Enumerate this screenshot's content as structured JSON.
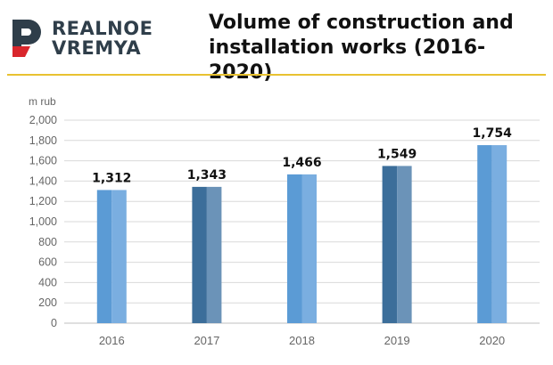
{
  "brand": {
    "line1": "REALNOE",
    "line2": "VREMYA"
  },
  "colors": {
    "accent": "#e8c230",
    "logo_mark": "#2f3e4a",
    "logo_red": "#d9262c",
    "bar_light": "#5b9bd5",
    "bar_dark": "#3c6e9a"
  },
  "chart_data": {
    "type": "bar",
    "title": "Volume of construction and installation works (2016-2020)",
    "ylabel": "m rub",
    "xlabel": "",
    "categories": [
      "2016",
      "2017",
      "2018",
      "2019",
      "2020"
    ],
    "values": [
      1312,
      1343,
      1466,
      1549,
      1754
    ],
    "value_labels": [
      "1,312",
      "1,343",
      "1,466",
      "1,549",
      "1,754"
    ],
    "ylim": [
      0,
      2000
    ],
    "yticks": [
      0,
      200,
      400,
      600,
      800,
      1000,
      1200,
      1400,
      1600,
      1800,
      2000
    ],
    "ytick_labels": [
      "0",
      "200",
      "400",
      "600",
      "800",
      "1,000",
      "1,200",
      "1,400",
      "1,600",
      "1,800",
      "2,000"
    ],
    "bar_shades": [
      "light",
      "dark",
      "light",
      "dark",
      "light"
    ],
    "grid": true
  }
}
